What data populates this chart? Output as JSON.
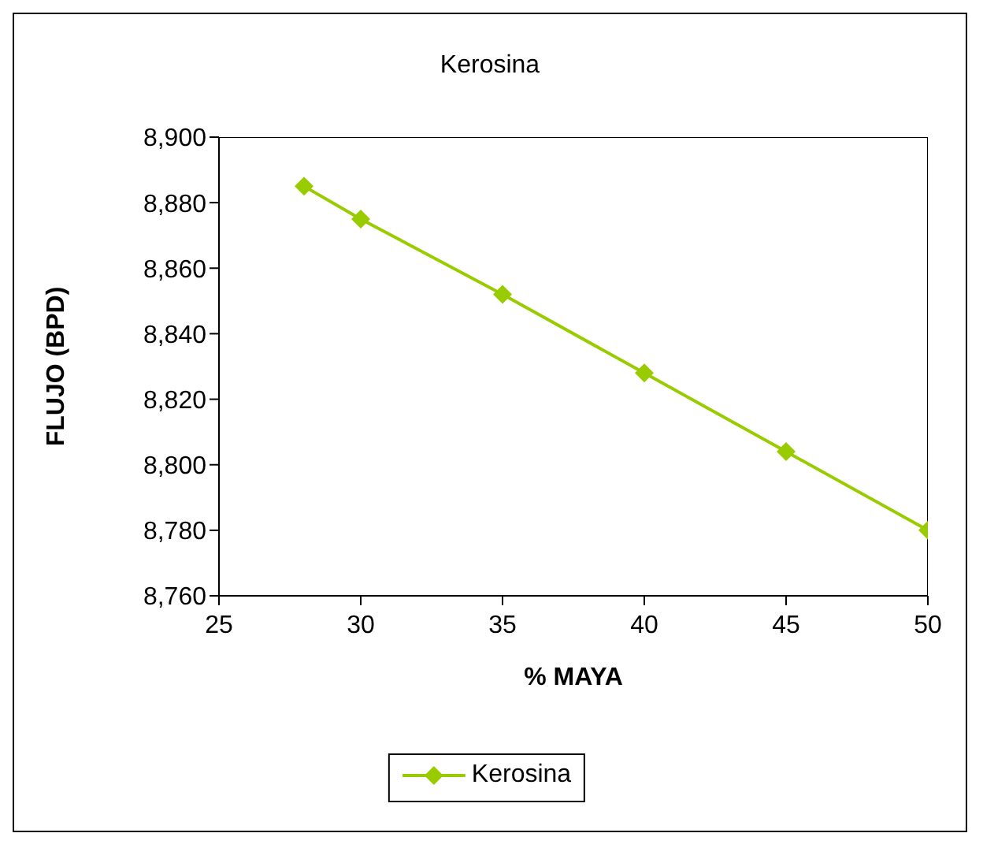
{
  "chart_data": {
    "type": "line",
    "title": "Kerosina",
    "xlabel": "% MAYA",
    "ylabel": "FLUJO (BPD)",
    "x": [
      28,
      30,
      35,
      40,
      45,
      50
    ],
    "series": [
      {
        "name": "Kerosina",
        "color": "#99cc00",
        "values": [
          8885,
          8875,
          8852,
          8828,
          8804,
          8780
        ]
      }
    ],
    "xlim": [
      25,
      50
    ],
    "xticks": [
      25,
      30,
      35,
      40,
      45,
      50
    ],
    "ylim": [
      8760,
      8900
    ],
    "yticks": [
      {
        "value": 8760,
        "label": "8,760"
      },
      {
        "value": 8780,
        "label": "8,780"
      },
      {
        "value": 8800,
        "label": "8,800"
      },
      {
        "value": 8820,
        "label": "8,820"
      },
      {
        "value": 8840,
        "label": "8,840"
      },
      {
        "value": 8860,
        "label": "8,860"
      },
      {
        "value": 8880,
        "label": "8,880"
      },
      {
        "value": 8900,
        "label": "8,900"
      }
    ],
    "grid": false,
    "legend": "bottom",
    "marker": "diamond",
    "line_style": "solid"
  }
}
